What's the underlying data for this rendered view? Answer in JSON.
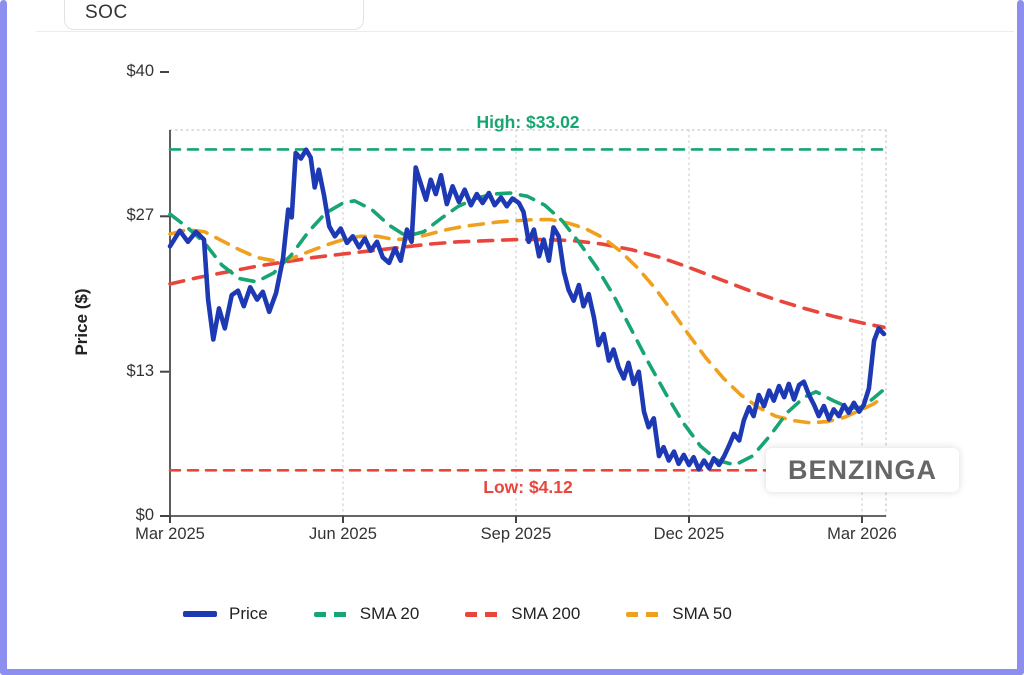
{
  "ticker": "SOC",
  "watermark": "BENZINGA",
  "colors": {
    "frame": "#8c8ff0",
    "price": "#1e39b4",
    "sma20": "#17a571",
    "sma200": "#e8463c",
    "sma50": "#f0a01e",
    "axis": "#333333",
    "grid": "#d4d4d4"
  },
  "chart_data": {
    "type": "line",
    "title": "",
    "xlabel": "",
    "ylabel": "Price ($)",
    "ylim": [
      0,
      40
    ],
    "x_unit": "months since Mar 2025",
    "grid": "dotted plot frame top/right, dotted vertical gridlines at x ticks",
    "legend_position": "bottom",
    "yticks": [
      {
        "value": 0,
        "label": "$0"
      },
      {
        "value": 13,
        "label": "$13"
      },
      {
        "value": 27,
        "label": "$27"
      },
      {
        "value": 40,
        "label": "$40"
      }
    ],
    "xticks": [
      {
        "value": 0,
        "label": "Mar 2025"
      },
      {
        "value": 3,
        "label": "Jun 2025"
      },
      {
        "value": 6,
        "label": "Sep 2025"
      },
      {
        "value": 9,
        "label": "Dec 2025"
      },
      {
        "value": 12,
        "label": "Mar 2026"
      }
    ],
    "high": {
      "value": 33.02,
      "label": "High: $33.02",
      "color": "#17a571"
    },
    "low": {
      "value": 4.12,
      "label": "Low: $4.12",
      "color": "#e8463c"
    },
    "legend": [
      {
        "label": "Price",
        "color": "#1e39b4",
        "dashed": false
      },
      {
        "label": "SMA 20",
        "color": "#17a571",
        "dashed": true
      },
      {
        "label": "SMA 200",
        "color": "#e8463c",
        "dashed": true
      },
      {
        "label": "SMA 50",
        "color": "#f0a01e",
        "dashed": true
      }
    ],
    "series": [
      {
        "name": "SMA 200",
        "color": "#e8463c",
        "dashed": true,
        "width": 3.6,
        "points": [
          [
            0,
            20.9
          ],
          [
            0.5,
            21.5
          ],
          [
            1.0,
            22.0
          ],
          [
            1.5,
            22.5
          ],
          [
            2.0,
            22.9
          ],
          [
            2.5,
            23.3
          ],
          [
            3.0,
            23.6
          ],
          [
            3.5,
            23.9
          ],
          [
            4.0,
            24.2
          ],
          [
            4.5,
            24.5
          ],
          [
            5.0,
            24.7
          ],
          [
            5.5,
            24.8
          ],
          [
            6.0,
            24.9
          ],
          [
            6.5,
            24.9
          ],
          [
            7.0,
            24.8
          ],
          [
            7.5,
            24.5
          ],
          [
            8.0,
            24.0
          ],
          [
            8.5,
            23.3
          ],
          [
            9.0,
            22.4
          ],
          [
            9.5,
            21.4
          ],
          [
            10.0,
            20.4
          ],
          [
            10.5,
            19.5
          ],
          [
            11.0,
            18.7
          ],
          [
            11.5,
            18.0
          ],
          [
            12.0,
            17.4
          ],
          [
            12.38,
            17.0
          ]
        ]
      },
      {
        "name": "SMA 50",
        "color": "#f0a01e",
        "dashed": true,
        "width": 3.6,
        "points": [
          [
            0,
            25.4
          ],
          [
            0.3,
            25.8
          ],
          [
            0.6,
            25.6
          ],
          [
            0.9,
            24.8
          ],
          [
            1.2,
            24.0
          ],
          [
            1.5,
            23.3
          ],
          [
            1.8,
            23.0
          ],
          [
            2.1,
            23.2
          ],
          [
            2.4,
            23.8
          ],
          [
            2.7,
            24.4
          ],
          [
            3.0,
            24.9
          ],
          [
            3.3,
            25.2
          ],
          [
            3.6,
            25.2
          ],
          [
            3.9,
            24.9
          ],
          [
            4.2,
            25.0
          ],
          [
            4.5,
            25.4
          ],
          [
            4.8,
            25.8
          ],
          [
            5.1,
            26.1
          ],
          [
            5.4,
            26.3
          ],
          [
            5.7,
            26.5
          ],
          [
            6.0,
            26.6
          ],
          [
            6.3,
            26.7
          ],
          [
            6.6,
            26.7
          ],
          [
            6.9,
            26.4
          ],
          [
            7.2,
            25.9
          ],
          [
            7.5,
            25.1
          ],
          [
            7.8,
            23.9
          ],
          [
            8.1,
            22.4
          ],
          [
            8.4,
            20.6
          ],
          [
            8.7,
            18.5
          ],
          [
            9.0,
            16.3
          ],
          [
            9.3,
            14.2
          ],
          [
            9.6,
            12.4
          ],
          [
            9.9,
            10.9
          ],
          [
            10.2,
            9.8
          ],
          [
            10.5,
            9.0
          ],
          [
            10.8,
            8.6
          ],
          [
            11.1,
            8.4
          ],
          [
            11.4,
            8.5
          ],
          [
            11.7,
            8.9
          ],
          [
            12.0,
            9.6
          ],
          [
            12.2,
            10.1
          ],
          [
            12.38,
            10.7
          ]
        ]
      },
      {
        "name": "SMA 20",
        "color": "#17a571",
        "dashed": true,
        "width": 3.6,
        "points": [
          [
            0,
            27.2
          ],
          [
            0.3,
            26.0
          ],
          [
            0.6,
            24.6
          ],
          [
            0.9,
            22.6
          ],
          [
            1.2,
            21.4
          ],
          [
            1.5,
            21.1
          ],
          [
            1.8,
            21.9
          ],
          [
            2.1,
            23.5
          ],
          [
            2.4,
            25.6
          ],
          [
            2.7,
            27.3
          ],
          [
            3.0,
            28.2
          ],
          [
            3.2,
            28.4
          ],
          [
            3.5,
            27.6
          ],
          [
            3.8,
            26.2
          ],
          [
            4.1,
            25.2
          ],
          [
            4.4,
            25.6
          ],
          [
            4.7,
            26.8
          ],
          [
            5.0,
            27.9
          ],
          [
            5.3,
            28.6
          ],
          [
            5.6,
            29.0
          ],
          [
            5.9,
            29.1
          ],
          [
            6.2,
            28.8
          ],
          [
            6.5,
            28.0
          ],
          [
            6.8,
            26.6
          ],
          [
            7.1,
            24.6
          ],
          [
            7.4,
            22.4
          ],
          [
            7.7,
            19.8
          ],
          [
            8.0,
            16.8
          ],
          [
            8.3,
            13.8
          ],
          [
            8.6,
            11.0
          ],
          [
            8.9,
            8.4
          ],
          [
            9.2,
            6.3
          ],
          [
            9.5,
            5.0
          ],
          [
            9.8,
            4.6
          ],
          [
            10.1,
            5.4
          ],
          [
            10.4,
            7.2
          ],
          [
            10.7,
            9.3
          ],
          [
            11.0,
            10.7
          ],
          [
            11.2,
            11.2
          ],
          [
            11.5,
            10.4
          ],
          [
            11.8,
            9.7
          ],
          [
            12.0,
            9.8
          ],
          [
            12.2,
            10.6
          ],
          [
            12.38,
            11.4
          ]
        ]
      },
      {
        "name": "Price",
        "color": "#1e39b4",
        "dashed": false,
        "width": 4.6,
        "points": [
          [
            0,
            24.3
          ],
          [
            0.17,
            25.7
          ],
          [
            0.31,
            24.7
          ],
          [
            0.45,
            25.6
          ],
          [
            0.59,
            24.9
          ],
          [
            0.66,
            19.5
          ],
          [
            0.75,
            15.9
          ],
          [
            0.85,
            18.7
          ],
          [
            0.95,
            16.9
          ],
          [
            1.07,
            19.9
          ],
          [
            1.18,
            20.3
          ],
          [
            1.28,
            18.9
          ],
          [
            1.39,
            20.6
          ],
          [
            1.51,
            19.5
          ],
          [
            1.61,
            20.2
          ],
          [
            1.72,
            18.4
          ],
          [
            1.84,
            20.1
          ],
          [
            1.96,
            23.2
          ],
          [
            2.05,
            27.6
          ],
          [
            2.11,
            26.9
          ],
          [
            2.18,
            32.7
          ],
          [
            2.27,
            32.2
          ],
          [
            2.36,
            33.0
          ],
          [
            2.44,
            32.3
          ],
          [
            2.51,
            29.6
          ],
          [
            2.58,
            31.2
          ],
          [
            2.67,
            28.9
          ],
          [
            2.76,
            26.1
          ],
          [
            2.86,
            25.2
          ],
          [
            2.96,
            25.9
          ],
          [
            3.07,
            24.6
          ],
          [
            3.17,
            25.2
          ],
          [
            3.28,
            24.2
          ],
          [
            3.38,
            25.0
          ],
          [
            3.48,
            23.9
          ],
          [
            3.59,
            24.7
          ],
          [
            3.69,
            23.3
          ],
          [
            3.8,
            22.8
          ],
          [
            3.9,
            24.1
          ],
          [
            4.0,
            23.0
          ],
          [
            4.11,
            25.8
          ],
          [
            4.19,
            24.7
          ],
          [
            4.26,
            31.4
          ],
          [
            4.35,
            29.9
          ],
          [
            4.44,
            28.5
          ],
          [
            4.52,
            30.3
          ],
          [
            4.61,
            29.0
          ],
          [
            4.7,
            30.7
          ],
          [
            4.8,
            28.1
          ],
          [
            4.9,
            29.7
          ],
          [
            5.01,
            28.3
          ],
          [
            5.11,
            29.4
          ],
          [
            5.22,
            28.0
          ],
          [
            5.32,
            29.0
          ],
          [
            5.42,
            28.2
          ],
          [
            5.53,
            29.1
          ],
          [
            5.63,
            28.0
          ],
          [
            5.74,
            28.7
          ],
          [
            5.84,
            27.9
          ],
          [
            5.94,
            28.6
          ],
          [
            6.05,
            28.2
          ],
          [
            6.13,
            27.4
          ],
          [
            6.22,
            24.7
          ],
          [
            6.31,
            25.8
          ],
          [
            6.4,
            23.4
          ],
          [
            6.48,
            24.9
          ],
          [
            6.57,
            23.0
          ],
          [
            6.65,
            26.0
          ],
          [
            6.74,
            25.2
          ],
          [
            6.83,
            22.0
          ],
          [
            6.91,
            20.4
          ],
          [
            7.0,
            19.4
          ],
          [
            7.09,
            20.8
          ],
          [
            7.17,
            18.9
          ],
          [
            7.26,
            20.0
          ],
          [
            7.35,
            17.9
          ],
          [
            7.43,
            15.4
          ],
          [
            7.52,
            16.4
          ],
          [
            7.61,
            14.0
          ],
          [
            7.69,
            15.0
          ],
          [
            7.78,
            13.4
          ],
          [
            7.87,
            12.4
          ],
          [
            7.95,
            13.8
          ],
          [
            8.04,
            11.9
          ],
          [
            8.13,
            13.0
          ],
          [
            8.22,
            9.4
          ],
          [
            8.3,
            8.0
          ],
          [
            8.39,
            8.8
          ],
          [
            8.48,
            5.4
          ],
          [
            8.56,
            6.2
          ],
          [
            8.65,
            5.0
          ],
          [
            8.74,
            5.8
          ],
          [
            8.82,
            4.7
          ],
          [
            8.91,
            5.5
          ],
          [
            9.0,
            4.6
          ],
          [
            9.08,
            5.3
          ],
          [
            9.17,
            4.2
          ],
          [
            9.26,
            5.0
          ],
          [
            9.35,
            4.3
          ],
          [
            9.43,
            5.2
          ],
          [
            9.52,
            4.6
          ],
          [
            9.61,
            5.4
          ],
          [
            9.69,
            6.3
          ],
          [
            9.78,
            7.4
          ],
          [
            9.87,
            6.8
          ],
          [
            9.95,
            8.6
          ],
          [
            10.04,
            9.8
          ],
          [
            10.12,
            9.0
          ],
          [
            10.21,
            10.9
          ],
          [
            10.3,
            9.9
          ],
          [
            10.39,
            11.3
          ],
          [
            10.47,
            10.4
          ],
          [
            10.56,
            11.7
          ],
          [
            10.65,
            10.7
          ],
          [
            10.73,
            11.9
          ],
          [
            10.82,
            10.5
          ],
          [
            10.91,
            11.8
          ],
          [
            10.99,
            12.1
          ],
          [
            11.08,
            10.9
          ],
          [
            11.17,
            10.0
          ],
          [
            11.25,
            9.0
          ],
          [
            11.34,
            9.9
          ],
          [
            11.43,
            8.7
          ],
          [
            11.51,
            9.6
          ],
          [
            11.6,
            9.0
          ],
          [
            11.69,
            10.0
          ],
          [
            11.77,
            9.3
          ],
          [
            11.86,
            10.2
          ],
          [
            11.95,
            9.4
          ],
          [
            12.03,
            10.0
          ],
          [
            12.12,
            11.5
          ],
          [
            12.21,
            15.8
          ],
          [
            12.29,
            16.9
          ],
          [
            12.38,
            16.4
          ]
        ]
      }
    ]
  }
}
